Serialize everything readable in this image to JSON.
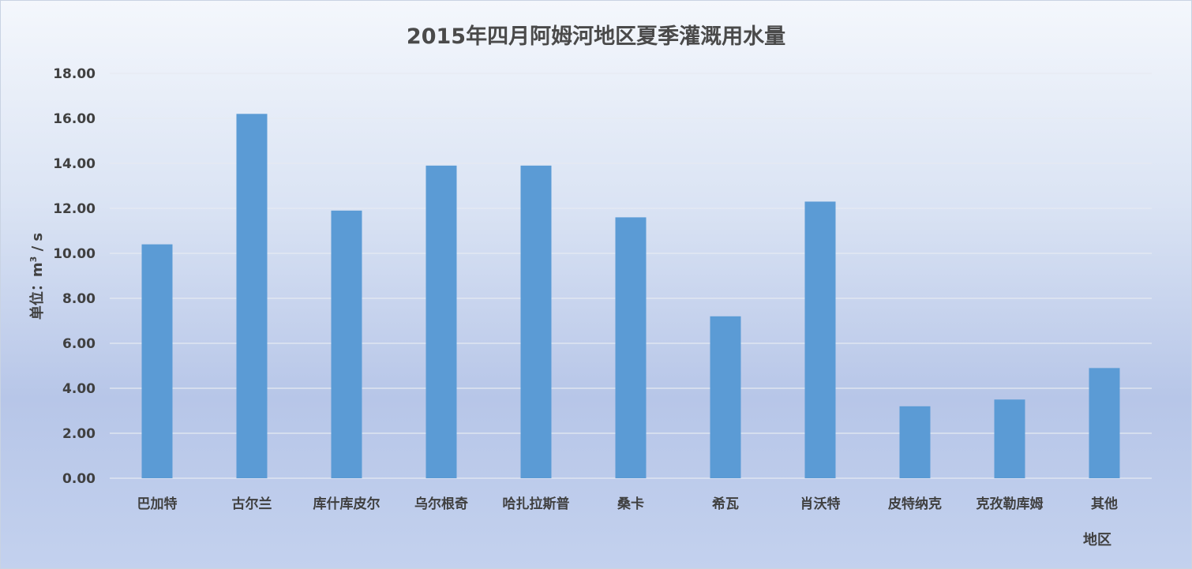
{
  "chart_data": {
    "type": "bar",
    "title": "2015年四月阿姆河地区夏季灌溉用水量",
    "xlabel": "地区",
    "ylabel_prefix": "单位：m",
    "ylabel_sup": "3",
    "ylabel_suffix": " / s",
    "ylim": [
      0,
      18
    ],
    "ytick_step": 2,
    "ytick_labels": [
      "0.00",
      "2.00",
      "4.00",
      "6.00",
      "8.00",
      "10.00",
      "12.00",
      "14.00",
      "16.00",
      "18.00"
    ],
    "grid": true,
    "bar_color": "#5b9bd5",
    "categories": [
      "巴加特",
      "古尔兰",
      "库什库皮尔",
      "乌尔根奇",
      "哈扎拉斯普",
      "桑卡",
      "希瓦",
      "肖沃特",
      "皮特纳克",
      "克孜勒库姆",
      "其他"
    ],
    "values": [
      10.4,
      16.2,
      11.9,
      13.9,
      13.9,
      11.6,
      7.2,
      12.3,
      3.2,
      3.5,
      4.9
    ]
  }
}
